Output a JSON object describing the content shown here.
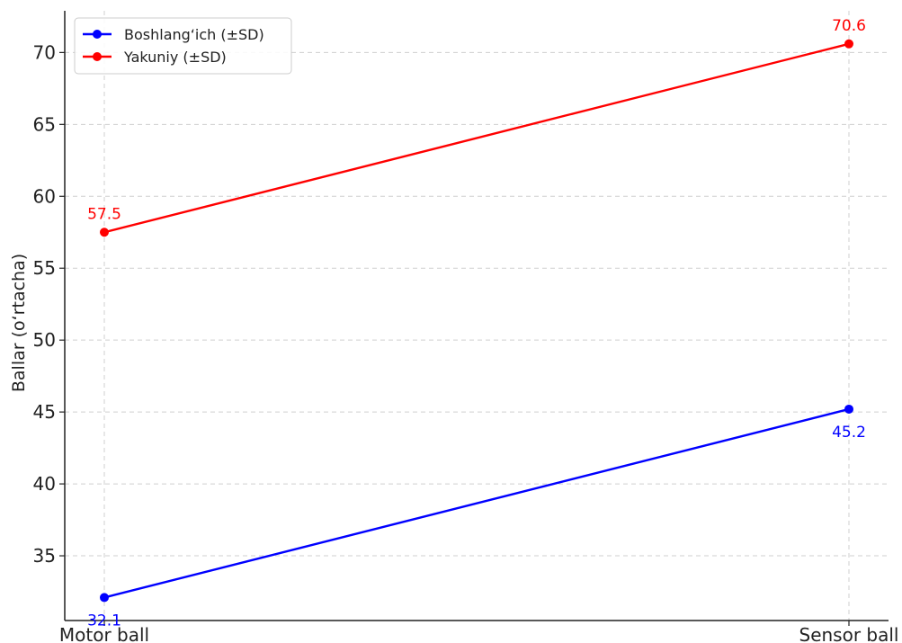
{
  "chart_data": {
    "type": "line",
    "title": "",
    "xlabel": "",
    "ylabel": "Ballar (o‘rtacha)",
    "categories": [
      "Motor ball",
      "Sensor ball"
    ],
    "ylim": [
      30.5,
      72.9
    ],
    "yticks": [
      35,
      40,
      45,
      50,
      55,
      60,
      65,
      70
    ],
    "grid": true,
    "legend_position": "top-left",
    "series": [
      {
        "name": "Boshlang‘ich (±SD)",
        "values": [
          32.1,
          45.2
        ],
        "labels": [
          "32.1",
          "45.2"
        ],
        "color": "#0000ff",
        "label_position": "below"
      },
      {
        "name": "Yakuniy (±SD)",
        "values": [
          57.5,
          70.6
        ],
        "labels": [
          "57.5",
          "70.6"
        ],
        "color": "#ff0000",
        "label_position": "above"
      }
    ]
  }
}
